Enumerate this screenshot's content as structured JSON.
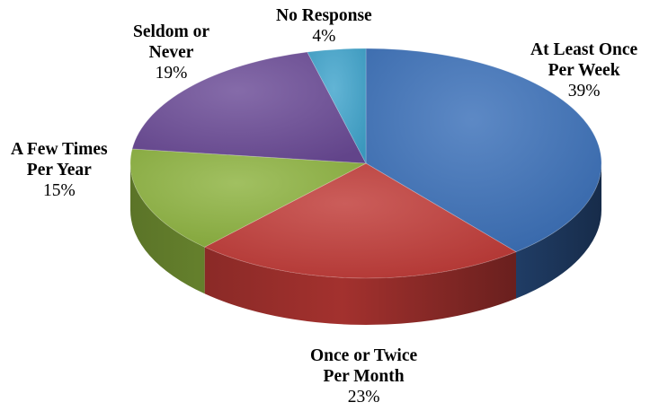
{
  "chart_data": {
    "type": "pie",
    "style": "3d",
    "slices": [
      {
        "label": "At Least Once Per Week",
        "label_lines": [
          "At Least Once",
          "Per Week"
        ],
        "value": 39,
        "value_label": "39%",
        "color": "#3a6fb8"
      },
      {
        "label": "Once or Twice Per Month",
        "label_lines": [
          "Once or Twice",
          "Per Month"
        ],
        "value": 23,
        "value_label": "23%",
        "color": "#c03a36"
      },
      {
        "label": "A Few Times Per Year",
        "label_lines": [
          "A Few Times",
          "Per Year"
        ],
        "value": 15,
        "value_label": "15%",
        "color": "#8cb23e"
      },
      {
        "label": "Seldom or Never",
        "label_lines": [
          "Seldom or",
          "Never"
        ],
        "value": 19,
        "value_label": "19%",
        "color": "#6a4a96"
      },
      {
        "label": "No Response",
        "label_lines": [
          "No Response"
        ],
        "value": 4,
        "value_label": "4%",
        "color": "#3fa4cc"
      }
    ]
  }
}
